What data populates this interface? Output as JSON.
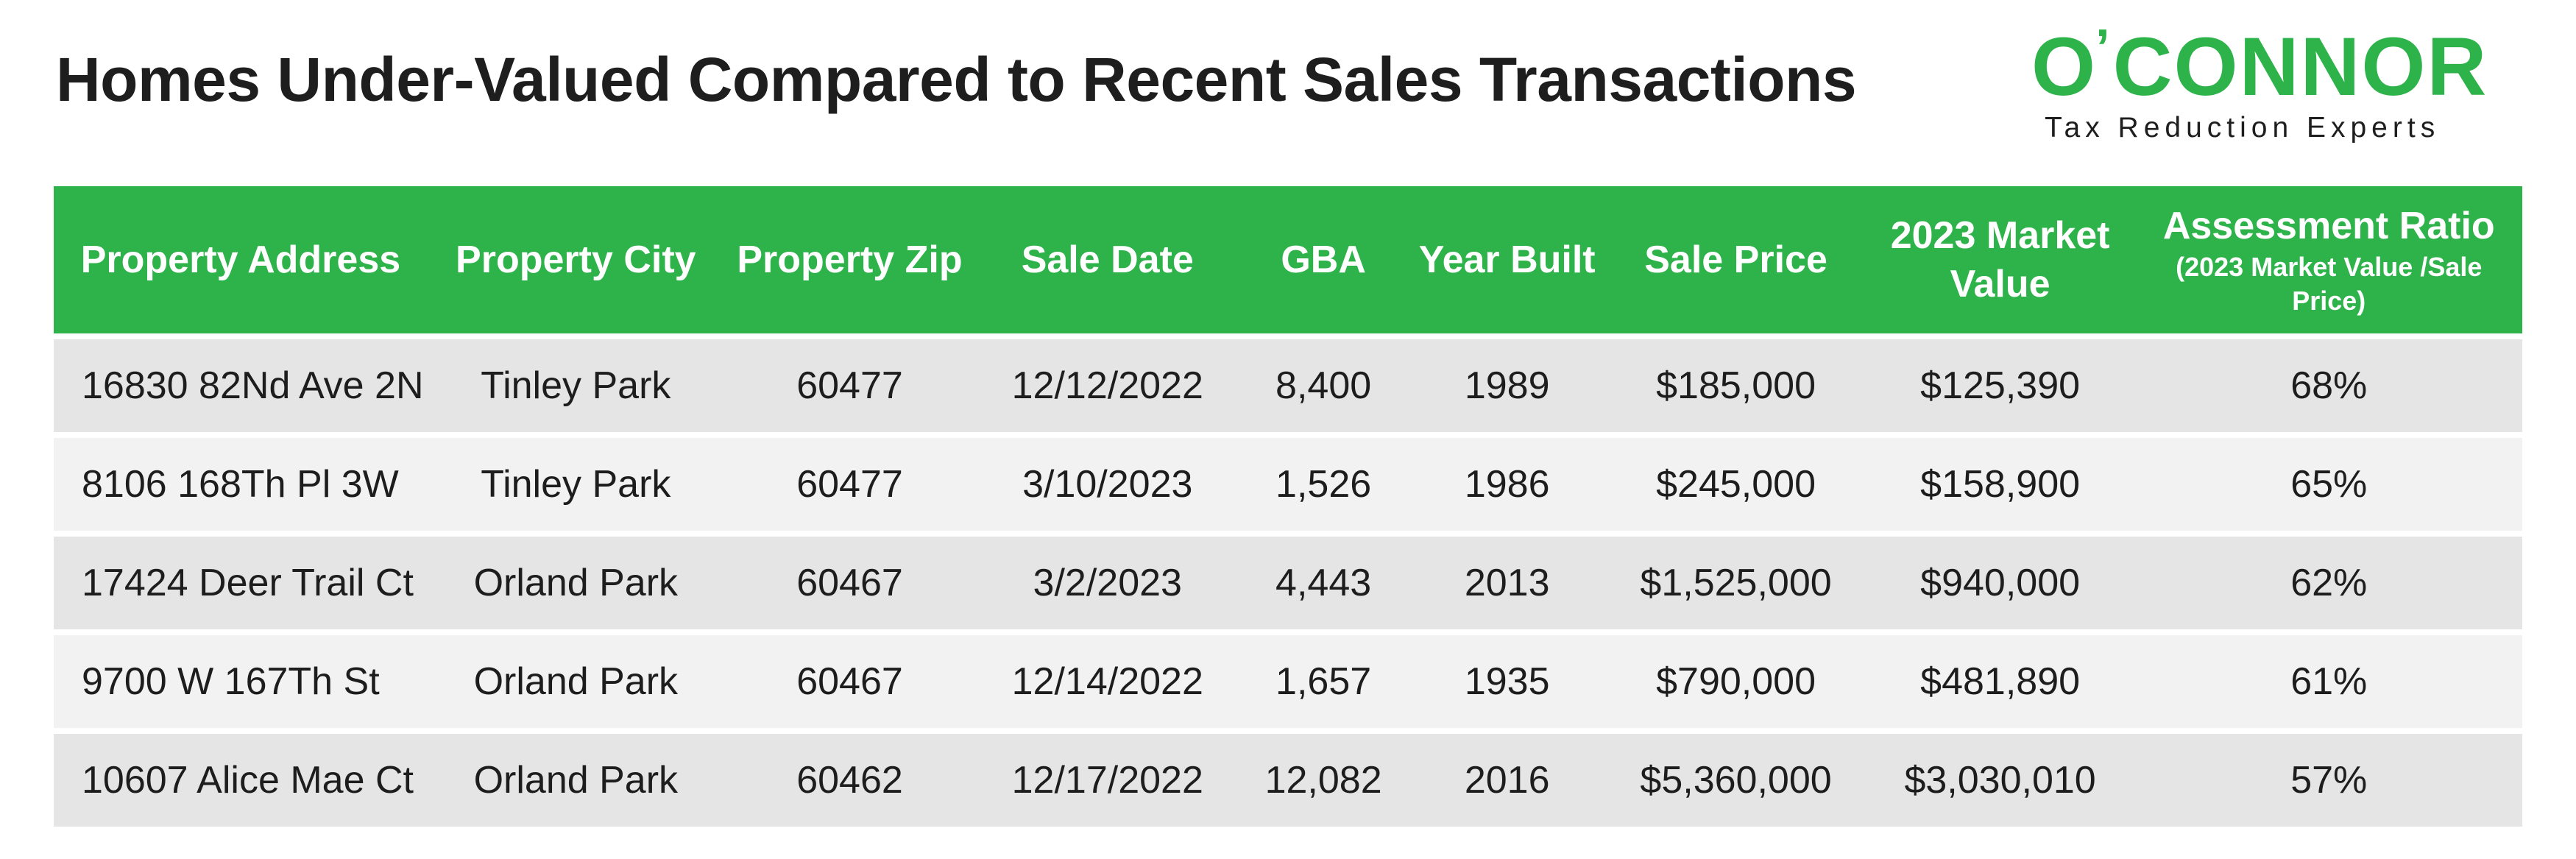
{
  "page": {
    "title": "Homes Under-Valued Compared to Recent Sales Transactions"
  },
  "logo": {
    "word_left": "O",
    "apostrophe": "’",
    "word_right": "CONNOR",
    "tagline": "Tax Reduction Experts",
    "brand_color": "#2db34a"
  },
  "table": {
    "header_color": "#2db34a",
    "columns": [
      {
        "label": "Property Address",
        "sub": ""
      },
      {
        "label": "Property City",
        "sub": ""
      },
      {
        "label": "Property Zip",
        "sub": ""
      },
      {
        "label": "Sale Date",
        "sub": ""
      },
      {
        "label": "GBA",
        "sub": ""
      },
      {
        "label": "Year Built",
        "sub": ""
      },
      {
        "label": "Sale Price",
        "sub": ""
      },
      {
        "label": "2023 Market Value",
        "sub": ""
      },
      {
        "label": "Assessment Ratio",
        "sub": "(2023 Market Value /Sale Price)"
      }
    ],
    "rows": [
      [
        "16830 82Nd Ave 2N",
        "Tinley Park",
        "60477",
        "12/12/2022",
        "8,400",
        "1989",
        "$185,000",
        "$125,390",
        "68%"
      ],
      [
        "8106 168Th Pl 3W",
        "Tinley Park",
        "60477",
        "3/10/2023",
        "1,526",
        "1986",
        "$245,000",
        "$158,900",
        "65%"
      ],
      [
        "17424 Deer Trail Ct",
        "Orland Park",
        "60467",
        "3/2/2023",
        "4,443",
        "2013",
        "$1,525,000",
        "$940,000",
        "62%"
      ],
      [
        "9700 W 167Th St",
        "Orland Park",
        "60467",
        "12/14/2022",
        "1,657",
        "1935",
        "$790,000",
        "$481,890",
        "61%"
      ],
      [
        "10607 Alice Mae Ct",
        "Orland Park",
        "60462",
        "12/17/2022",
        "12,082",
        "2016",
        "$5,360,000",
        "$3,030,010",
        "57%"
      ]
    ]
  }
}
